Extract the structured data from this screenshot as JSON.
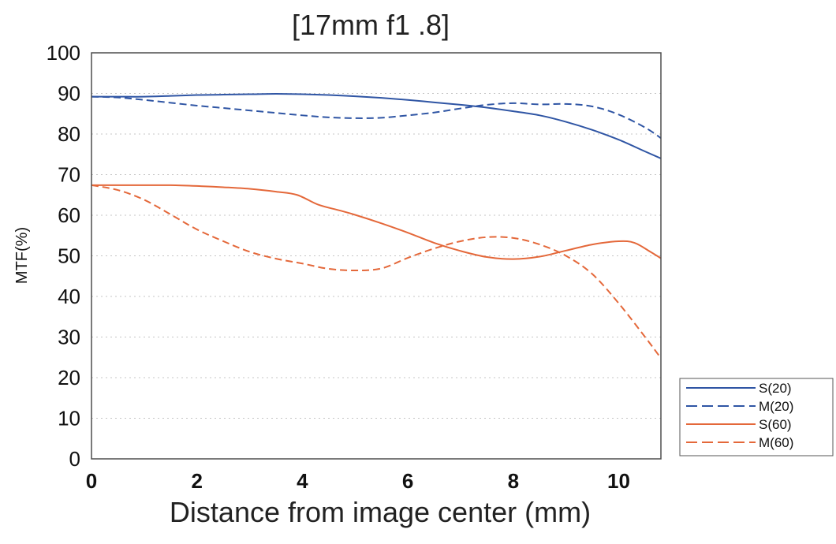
{
  "chart_data": {
    "type": "line",
    "title": "[17mm  f1 .8]",
    "xlabel": "Distance from image center (mm)",
    "ylabel": "MTF(%)",
    "xlim": [
      0,
      10.8
    ],
    "ylim": [
      0,
      100
    ],
    "x_ticks": [
      0,
      2,
      4,
      6,
      8,
      10
    ],
    "y_ticks": [
      0,
      10,
      20,
      30,
      40,
      50,
      60,
      70,
      80,
      90,
      100
    ],
    "grid": "horizontal dotted",
    "legend_position": "bottom-right outside",
    "series": [
      {
        "name": "S(20)",
        "color": "#2f55a4",
        "dash": "solid",
        "x": [
          0,
          0.5,
          1,
          1.5,
          2,
          2.5,
          3,
          3.5,
          4,
          4.5,
          5,
          5.5,
          6,
          6.5,
          7,
          7.5,
          8,
          8.5,
          9,
          9.5,
          10,
          10.5,
          10.8
        ],
        "y": [
          89.2,
          89.2,
          89.2,
          89.4,
          89.6,
          89.7,
          89.8,
          89.9,
          89.8,
          89.6,
          89.3,
          88.9,
          88.4,
          87.8,
          87.2,
          86.5,
          85.6,
          84.6,
          83.0,
          81.0,
          78.6,
          75.7,
          74.0
        ]
      },
      {
        "name": "M(20)",
        "color": "#2f55a4",
        "dash": "dashed",
        "x": [
          0,
          0.5,
          1,
          1.5,
          2,
          2.5,
          3,
          3.5,
          4,
          4.5,
          5,
          5.5,
          6,
          6.5,
          7,
          7.5,
          8,
          8.5,
          9,
          9.5,
          10,
          10.5,
          10.8
        ],
        "y": [
          89.2,
          89.0,
          88.4,
          87.7,
          87.0,
          86.4,
          85.8,
          85.2,
          84.6,
          84.1,
          83.9,
          84.0,
          84.6,
          85.3,
          86.3,
          87.2,
          87.6,
          87.3,
          87.4,
          86.8,
          84.8,
          81.6,
          79.0
        ]
      },
      {
        "name": "S(60)",
        "color": "#e4683a",
        "dash": "solid",
        "x": [
          0,
          0.5,
          1,
          1.5,
          2,
          2.5,
          3,
          3.5,
          3.9,
          4.3,
          4.7,
          5,
          5.5,
          6,
          6.5,
          7,
          7.5,
          8,
          8.5,
          9,
          9.5,
          10,
          10.3,
          10.6,
          10.8
        ],
        "y": [
          67.4,
          67.4,
          67.4,
          67.4,
          67.2,
          66.9,
          66.5,
          65.8,
          65.0,
          62.6,
          61.2,
          60.1,
          58.0,
          55.7,
          53.2,
          51.2,
          49.7,
          49.2,
          49.8,
          51.3,
          52.8,
          53.6,
          53.2,
          51.0,
          49.4
        ]
      },
      {
        "name": "M(60)",
        "color": "#e4683a",
        "dash": "dashed",
        "x": [
          0,
          0.5,
          1,
          1.5,
          2,
          2.5,
          3,
          3.5,
          4,
          4.5,
          5,
          5.5,
          6,
          6.5,
          7,
          7.5,
          8,
          8.5,
          9,
          9.5,
          10,
          10.5,
          10.8
        ],
        "y": [
          67.4,
          66.2,
          63.8,
          60.2,
          56.5,
          53.6,
          51.0,
          49.3,
          48.1,
          46.8,
          46.4,
          46.9,
          49.5,
          51.8,
          53.6,
          54.6,
          54.4,
          52.8,
          50.0,
          45.5,
          38.3,
          30.0,
          24.8
        ]
      }
    ]
  }
}
